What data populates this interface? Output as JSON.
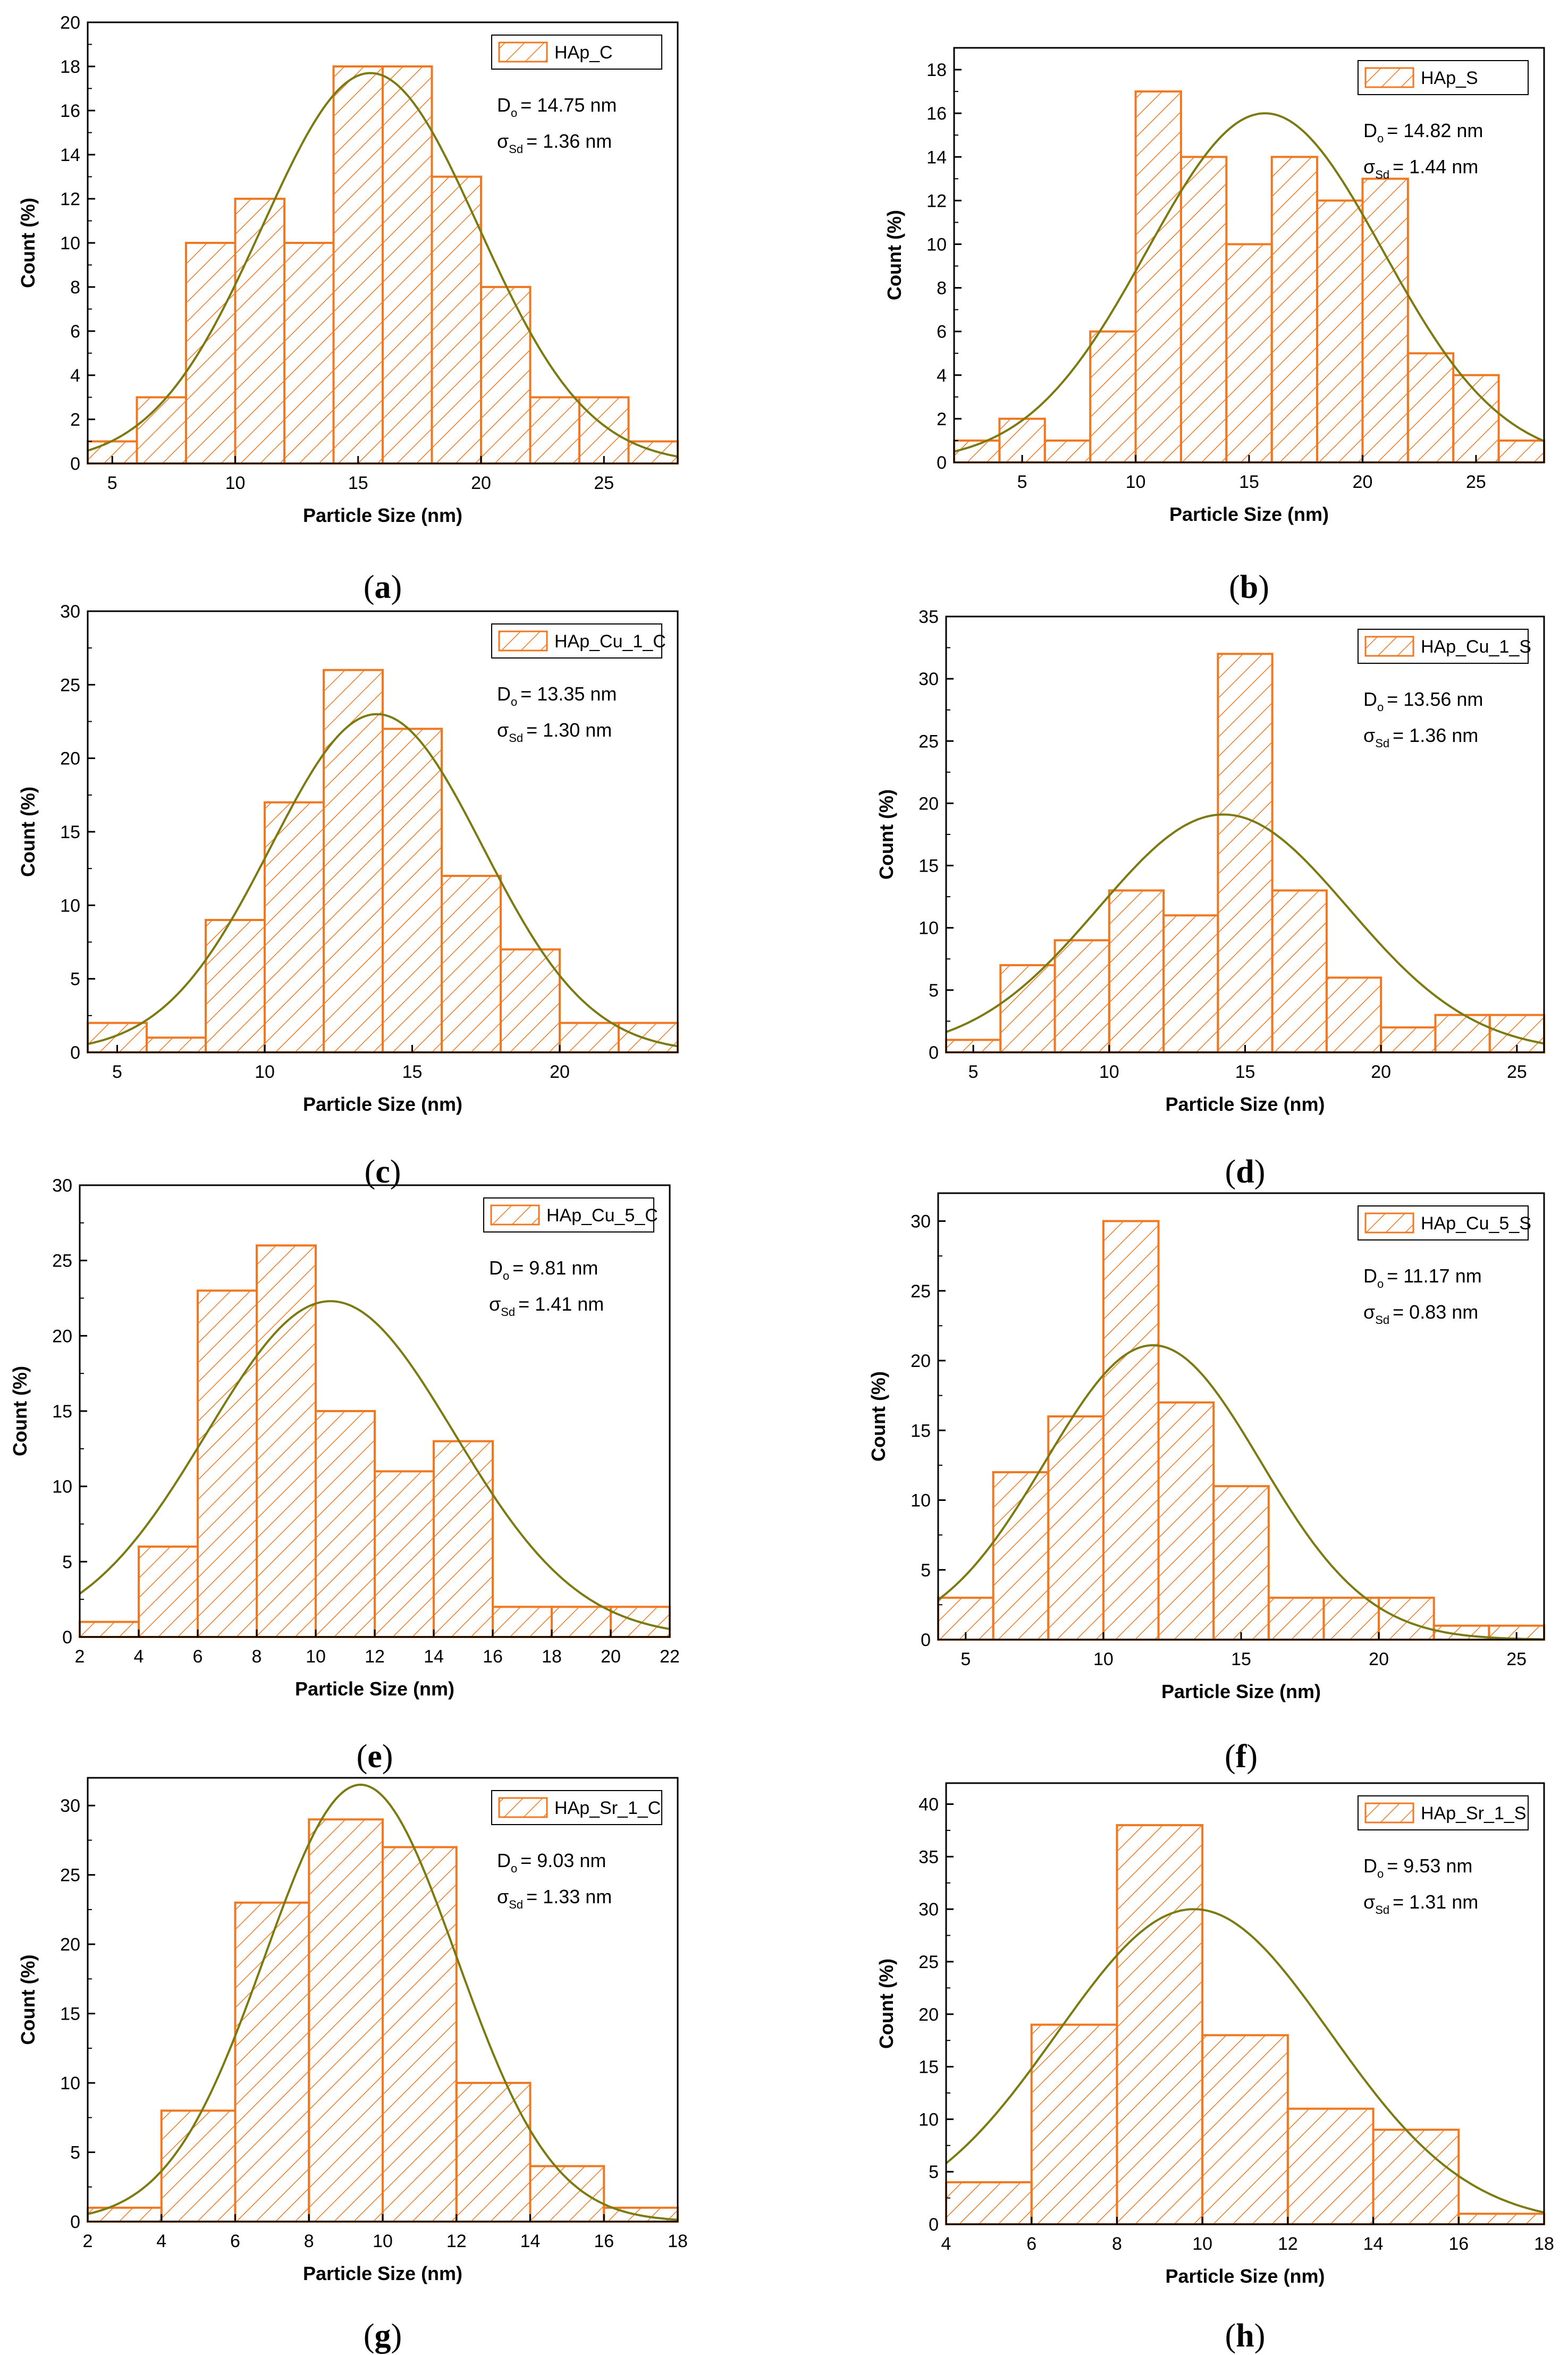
{
  "colors": {
    "bar_fill": "#ffffff",
    "bar_stroke": "#f07820",
    "hatch": "#f07820",
    "curve": "#7a7a10",
    "axis": "#000000"
  },
  "chart_data": [
    {
      "type": "bar",
      "panel_label": "a",
      "caption_open": "(",
      "caption_close": ")",
      "legend": "HAp_C",
      "stat_d": "D",
      "stat_d_sub": "o",
      "stat_d_value": "= 14.75 nm",
      "stat_s": "σ",
      "stat_s_sub": "Sd",
      "stat_s_value": "= 1.36 nm",
      "xlabel": "Particle Size (nm)",
      "ylabel": "Count (%)",
      "xlim": [
        4,
        28
      ],
      "ylim": [
        0,
        20
      ],
      "xticks": [
        5,
        10,
        15,
        20,
        25
      ],
      "yticks": [
        0,
        2,
        4,
        6,
        8,
        10,
        12,
        14,
        16,
        18,
        20
      ],
      "bin_start": 4,
      "bin_width": 2,
      "values": [
        1,
        3,
        10,
        12,
        10,
        18,
        18,
        13,
        8,
        3,
        3,
        1
      ],
      "fit": {
        "center": 15.5,
        "sigma": 4.4,
        "peak": 17.7
      }
    },
    {
      "type": "bar",
      "panel_label": "b",
      "caption_open": "(",
      "caption_close": ")",
      "legend": "HAp_S",
      "stat_d": "D",
      "stat_d_sub": "o",
      "stat_d_value": "= 14.82 nm",
      "stat_s": "σ",
      "stat_s_sub": "Sd",
      "stat_s_value": "= 1.44 nm",
      "xlabel": "Particle Size (nm)",
      "ylabel": "Count (%)",
      "xlim": [
        2,
        28
      ],
      "ylim": [
        0,
        19
      ],
      "xticks": [
        5,
        10,
        15,
        20,
        25
      ],
      "yticks": [
        0,
        2,
        4,
        6,
        8,
        10,
        12,
        14,
        16,
        18
      ],
      "bin_start": 2,
      "bin_width": 2,
      "values": [
        1,
        2,
        1,
        6,
        17,
        14,
        10,
        14,
        12,
        13,
        5,
        4,
        1
      ],
      "fit": {
        "center": 15.7,
        "sigma": 5.2,
        "peak": 16.0
      }
    },
    {
      "type": "bar",
      "panel_label": "c",
      "caption_open": "(",
      "caption_close": ")",
      "legend": "HAp_Cu_1_C",
      "stat_d": "D",
      "stat_d_sub": "o",
      "stat_d_value": "= 13.35 nm",
      "stat_s": "σ",
      "stat_s_sub": "Sd",
      "stat_s_value": "= 1.30 nm",
      "xlabel": "Particle Size (nm)",
      "ylabel": "Count (%)",
      "xlim": [
        4,
        24
      ],
      "ylim": [
        0,
        30
      ],
      "xticks": [
        5,
        10,
        15,
        20
      ],
      "yticks": [
        0,
        5,
        10,
        15,
        20,
        25,
        30
      ],
      "bin_start": 4,
      "bin_width": 2,
      "values": [
        2,
        1,
        9,
        17,
        26,
        22,
        12,
        7,
        2,
        2
      ],
      "fit": {
        "center": 13.8,
        "sigma": 3.6,
        "peak": 23.0
      }
    },
    {
      "type": "bar",
      "panel_label": "d",
      "caption_open": "(",
      "caption_close": ")",
      "legend": "HAp_Cu_1_S",
      "stat_d": "D",
      "stat_d_sub": "o",
      "stat_d_value": "= 13.56 nm",
      "stat_s": "σ",
      "stat_s_sub": "Sd",
      "stat_s_value": "= 1.36 nm",
      "xlabel": "Particle Size (nm)",
      "ylabel": "Count (%)",
      "xlim": [
        4,
        26
      ],
      "ylim": [
        0,
        35
      ],
      "xticks": [
        5,
        10,
        15,
        20,
        25
      ],
      "yticks": [
        0,
        5,
        10,
        15,
        20,
        25,
        30,
        35
      ],
      "bin_start": 4,
      "bin_width": 2,
      "values": [
        1,
        7,
        9,
        13,
        11,
        32,
        13,
        6,
        2,
        3,
        3
      ],
      "fit": {
        "center": 14.2,
        "sigma": 4.6,
        "peak": 19.1
      }
    },
    {
      "type": "bar",
      "panel_label": "e",
      "caption_open": "(",
      "caption_close": ")",
      "legend": "HAp_Cu_5_C",
      "stat_d": "D",
      "stat_d_sub": "o",
      "stat_d_value": "= 9.81 nm",
      "stat_s": "σ",
      "stat_s_sub": "Sd",
      "stat_s_value": "= 1.41 nm",
      "xlabel": "Particle Size (nm)",
      "ylabel": "Count (%)",
      "xlim": [
        2,
        22
      ],
      "ylim": [
        0,
        30
      ],
      "xticks": [
        2,
        4,
        6,
        8,
        10,
        12,
        14,
        16,
        18,
        20,
        22
      ],
      "yticks": [
        0,
        5,
        10,
        15,
        20,
        25,
        30
      ],
      "bin_start": 2,
      "bin_width": 2,
      "values": [
        1,
        6,
        23,
        26,
        15,
        11,
        13,
        2,
        2,
        2
      ],
      "fit": {
        "center": 10.5,
        "sigma": 4.2,
        "peak": 22.3
      }
    },
    {
      "type": "bar",
      "panel_label": "f",
      "caption_open": "(",
      "caption_close": ")",
      "legend": "HAp_Cu_5_S",
      "stat_d": "D",
      "stat_d_sub": "o",
      "stat_d_value": "= 11.17 nm",
      "stat_s": "σ",
      "stat_s_sub": "Sd",
      "stat_s_value": "= 0.83 nm",
      "xlabel": "Particle Size (nm)",
      "ylabel": "Count (%)",
      "xlim": [
        4,
        26
      ],
      "ylim": [
        0,
        32
      ],
      "xticks": [
        5,
        10,
        15,
        20,
        25
      ],
      "yticks": [
        0,
        5,
        10,
        15,
        20,
        25,
        30
      ],
      "bin_start": 4,
      "bin_width": 2,
      "values": [
        3,
        12,
        16,
        30,
        17,
        11,
        3,
        3,
        3,
        1,
        1
      ],
      "fit": {
        "center": 11.8,
        "sigma": 3.9,
        "peak": 21.1
      }
    },
    {
      "type": "bar",
      "panel_label": "g",
      "caption_open": "(",
      "caption_close": ")",
      "legend": "HAp_Sr_1_C",
      "stat_d": "D",
      "stat_d_sub": "o",
      "stat_d_value": "= 9.03 nm",
      "stat_s": "σ",
      "stat_s_sub": "Sd",
      "stat_s_value": "= 1.33 nm",
      "xlabel": "Particle Size (nm)",
      "ylabel": "Count (%)",
      "xlim": [
        2,
        18
      ],
      "ylim": [
        0,
        32
      ],
      "xticks": [
        2,
        4,
        6,
        8,
        10,
        12,
        14,
        16,
        18
      ],
      "yticks": [
        0,
        5,
        10,
        15,
        20,
        25,
        30
      ],
      "bin_start": 2,
      "bin_width": 2,
      "values": [
        1,
        8,
        23,
        29,
        27,
        10,
        4,
        1
      ],
      "fit": {
        "center": 9.4,
        "sigma": 2.6,
        "peak": 31.5
      }
    },
    {
      "type": "bar",
      "panel_label": "h",
      "caption_open": "(",
      "caption_close": ")",
      "legend": "HAp_Sr_1_S",
      "stat_d": "D",
      "stat_d_sub": "o",
      "stat_d_value": "= 9.53 nm",
      "stat_s": "σ",
      "stat_s_sub": "Sd",
      "stat_s_value": "= 1.31 nm",
      "xlabel": "Particle Size (nm)",
      "ylabel": "Count (%)",
      "xlim": [
        4,
        18
      ],
      "ylim": [
        0,
        42
      ],
      "xticks": [
        4,
        6,
        8,
        10,
        12,
        14,
        16,
        18
      ],
      "yticks": [
        0,
        5,
        10,
        15,
        20,
        25,
        30,
        35,
        40
      ],
      "bin_start": 4,
      "bin_width": 2,
      "values": [
        4,
        19,
        38,
        18,
        11,
        9,
        1
      ],
      "fit": {
        "center": 9.8,
        "sigma": 3.2,
        "peak": 30.0
      }
    }
  ]
}
